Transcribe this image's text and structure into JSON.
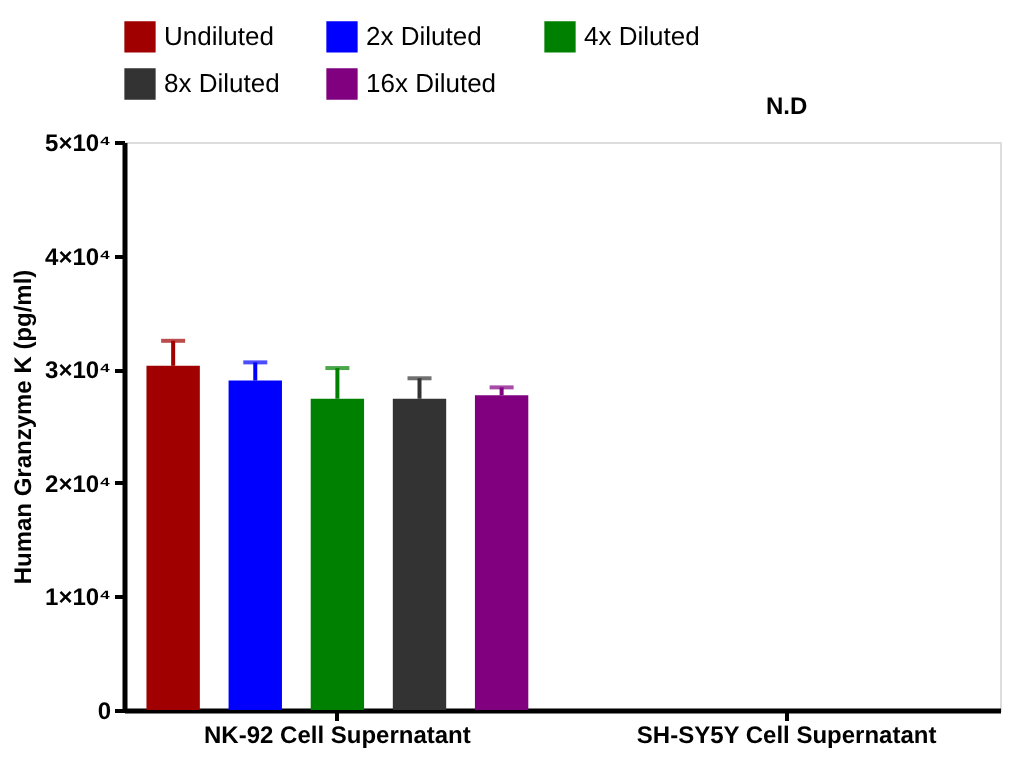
{
  "chart_data": {
    "type": "bar",
    "ylabel": "Human Granzyme K (pg/ml)",
    "categories": [
      "NK-92 Cell Supernatant",
      "SH-SY5Y Cell Supernatant"
    ],
    "series": [
      {
        "name": "Undiluted",
        "color": "#a00000",
        "values": [
          30300,
          null
        ],
        "errors": [
          [
            30300,
            32500
          ],
          null
        ]
      },
      {
        "name": "2x Diluted",
        "color": "#0000ff",
        "values": [
          29000,
          null
        ],
        "errors": [
          [
            29000,
            30600
          ],
          null
        ]
      },
      {
        "name": "4x Diluted",
        "color": "#008000",
        "values": [
          27400,
          null
        ],
        "errors": [
          [
            27400,
            30100
          ],
          null
        ]
      },
      {
        "name": "8x Diluted",
        "color": "#333333",
        "values": [
          27400,
          null
        ],
        "errors": [
          [
            27400,
            29200
          ],
          null
        ]
      },
      {
        "name": "16x Diluted",
        "color": "#800080",
        "values": [
          27700,
          null
        ],
        "errors": [
          [
            27700,
            28400
          ],
          null
        ]
      }
    ],
    "ylim": [
      0,
      50000
    ],
    "yticks": [
      0,
      {
        "value": 10000,
        "label": "1×10⁴"
      },
      {
        "value": 20000,
        "label": "2×10⁴"
      },
      {
        "value": 30000,
        "label": "3×10⁴"
      },
      {
        "value": 40000,
        "label": "4×10⁴"
      },
      {
        "value": 50000,
        "label": "5×10⁴"
      }
    ],
    "annotations": [
      "N.D"
    ],
    "legend": "top",
    "grid": false
  }
}
